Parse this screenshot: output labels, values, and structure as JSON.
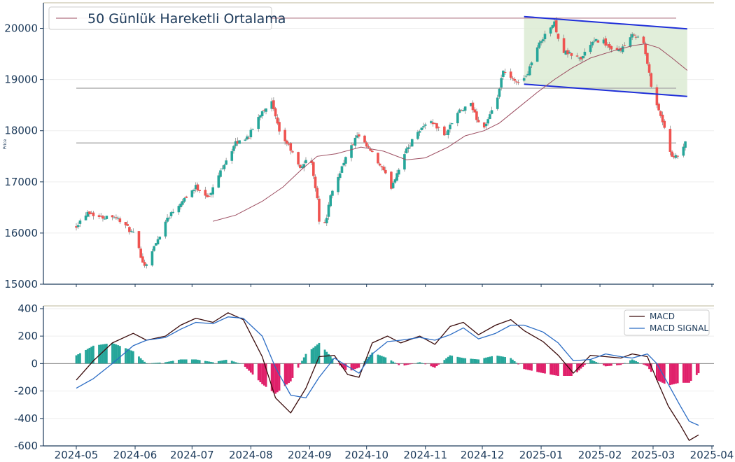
{
  "colors": {
    "up": "#26a69a",
    "down": "#ef5350",
    "ma_line": "#9c4d60",
    "channel": "#1f2fd9",
    "channel_fill": "#dcebd3",
    "sr_line": "#b0b0b0",
    "macd_line": "#3a0b0b",
    "signal_line": "#2b6cc4",
    "hist_pos": "#26a69a",
    "hist_neg": "#e0206a",
    "axis": "#1c3a5a",
    "grid": "#eeeeee"
  },
  "chart_data": [
    {
      "type": "candlestick",
      "ylabel": "Price",
      "ylim": [
        15000,
        20500
      ],
      "yticks": [
        15000,
        16000,
        17000,
        18000,
        19000,
        20000
      ],
      "legend": {
        "placement": "top-left",
        "entries": [
          "50 Günlük Hareketli Ortalama"
        ]
      },
      "ma_label": "50 Günlük Hareketli Ortalama",
      "grid": true,
      "support_resistance": [
        20200,
        18830,
        17760
      ],
      "channel": {
        "start_date": "2024-12-23",
        "end_date": "2025-03-19",
        "upper": [
          20230,
          19990
        ],
        "lower": [
          18910,
          18670
        ]
      },
      "anchors": [
        [
          "2024-05-01",
          16150
        ],
        [
          "2024-05-07",
          16420
        ],
        [
          "2024-05-14",
          16300
        ],
        [
          "2024-05-20",
          16350
        ],
        [
          "2024-05-24",
          16250
        ],
        [
          "2024-05-31",
          15980
        ],
        [
          "2024-06-06",
          15350
        ],
        [
          "2024-06-12",
          15800
        ],
        [
          "2024-06-18",
          16300
        ],
        [
          "2024-06-26",
          16650
        ],
        [
          "2024-07-03",
          16900
        ],
        [
          "2024-07-10",
          16700
        ],
        [
          "2024-07-17",
          17300
        ],
        [
          "2024-07-24",
          17750
        ],
        [
          "2024-07-31",
          17900
        ],
        [
          "2024-08-07",
          18400
        ],
        [
          "2024-08-12",
          18550
        ],
        [
          "2024-08-16",
          17950
        ],
        [
          "2024-08-21",
          17700
        ],
        [
          "2024-08-27",
          17250
        ],
        [
          "2024-09-01",
          17550
        ],
        [
          "2024-09-05",
          16700
        ],
        [
          "2024-09-07",
          15800
        ],
        [
          "2024-09-12",
          16700
        ],
        [
          "2024-09-19",
          17400
        ],
        [
          "2024-09-26",
          17900
        ],
        [
          "2024-10-03",
          17600
        ],
        [
          "2024-10-10",
          17200
        ],
        [
          "2024-10-14",
          16900
        ],
        [
          "2024-10-21",
          17550
        ],
        [
          "2024-10-28",
          18000
        ],
        [
          "2024-11-04",
          18200
        ],
        [
          "2024-11-11",
          17900
        ],
        [
          "2024-11-18",
          18350
        ],
        [
          "2024-11-25",
          18500
        ],
        [
          "2024-12-01",
          18000
        ],
        [
          "2024-12-08",
          18500
        ],
        [
          "2024-12-12",
          19150
        ],
        [
          "2024-12-18",
          18950
        ],
        [
          "2024-12-24",
          19050
        ],
        [
          "2024-12-29",
          19550
        ],
        [
          "2025-01-03",
          19900
        ],
        [
          "2025-01-08",
          20100
        ],
        [
          "2025-01-12",
          19550
        ],
        [
          "2025-01-16",
          19500
        ],
        [
          "2025-01-22",
          19400
        ],
        [
          "2025-01-27",
          19700
        ],
        [
          "2025-02-02",
          19800
        ],
        [
          "2025-02-08",
          19500
        ],
        [
          "2025-02-14",
          19650
        ],
        [
          "2025-02-19",
          19900
        ],
        [
          "2025-02-24",
          19700
        ],
        [
          "2025-02-28",
          18900
        ],
        [
          "2025-03-04",
          18400
        ],
        [
          "2025-03-08",
          17950
        ],
        [
          "2025-03-11",
          17450
        ],
        [
          "2025-03-14",
          17500
        ],
        [
          "2025-03-18",
          17750
        ]
      ],
      "ma50": [
        [
          "2024-07-12",
          16230
        ],
        [
          "2024-07-24",
          16350
        ],
        [
          "2024-08-07",
          16620
        ],
        [
          "2024-08-18",
          16900
        ],
        [
          "2024-08-28",
          17250
        ],
        [
          "2024-09-05",
          17500
        ],
        [
          "2024-09-15",
          17550
        ],
        [
          "2024-09-28",
          17680
        ],
        [
          "2024-10-10",
          17600
        ],
        [
          "2024-10-22",
          17430
        ],
        [
          "2024-11-01",
          17470
        ],
        [
          "2024-11-13",
          17680
        ],
        [
          "2024-11-22",
          17900
        ],
        [
          "2024-12-02",
          18000
        ],
        [
          "2024-12-10",
          18150
        ],
        [
          "2024-12-20",
          18450
        ],
        [
          "2024-12-30",
          18750
        ],
        [
          "2025-01-08",
          19000
        ],
        [
          "2025-01-17",
          19220
        ],
        [
          "2025-01-27",
          19420
        ],
        [
          "2025-02-08",
          19560
        ],
        [
          "2025-02-18",
          19660
        ],
        [
          "2025-02-25",
          19700
        ],
        [
          "2025-03-04",
          19620
        ],
        [
          "2025-03-11",
          19420
        ],
        [
          "2025-03-19",
          19180
        ]
      ]
    },
    {
      "type": "line",
      "ylim": [
        -600,
        420
      ],
      "yticks": [
        -600,
        -400,
        -200,
        0,
        200,
        400
      ],
      "xticks": [
        "2024-05",
        "2024-06",
        "2024-07",
        "2024-08",
        "2024-09",
        "2024-10",
        "2024-11",
        "2024-12",
        "2025-01",
        "2025-02",
        "2025-03",
        "2025-04"
      ],
      "legend": {
        "placement": "top-right",
        "entries": [
          "MACD",
          "MACD SIGNAL"
        ]
      },
      "series": [
        {
          "name": "MACD",
          "values": [
            [
              "2024-05-01",
              -120
            ],
            [
              "2024-05-10",
              20
            ],
            [
              "2024-05-20",
              150
            ],
            [
              "2024-05-31",
              220
            ],
            [
              "2024-06-07",
              170
            ],
            [
              "2024-06-17",
              200
            ],
            [
              "2024-06-25",
              280
            ],
            [
              "2024-07-03",
              330
            ],
            [
              "2024-07-12",
              300
            ],
            [
              "2024-07-20",
              370
            ],
            [
              "2024-07-28",
              320
            ],
            [
              "2024-08-07",
              50
            ],
            [
              "2024-08-14",
              -250
            ],
            [
              "2024-08-22",
              -360
            ],
            [
              "2024-08-30",
              -180
            ],
            [
              "2024-09-06",
              50
            ],
            [
              "2024-09-14",
              60
            ],
            [
              "2024-09-21",
              -80
            ],
            [
              "2024-09-27",
              -100
            ],
            [
              "2024-10-04",
              150
            ],
            [
              "2024-10-12",
              200
            ],
            [
              "2024-10-19",
              150
            ],
            [
              "2024-10-29",
              200
            ],
            [
              "2024-11-06",
              140
            ],
            [
              "2024-11-14",
              270
            ],
            [
              "2024-11-21",
              300
            ],
            [
              "2024-11-29",
              210
            ],
            [
              "2024-12-08",
              280
            ],
            [
              "2024-12-16",
              320
            ],
            [
              "2024-12-23",
              240
            ],
            [
              "2025-01-02",
              160
            ],
            [
              "2025-01-10",
              60
            ],
            [
              "2025-01-18",
              -70
            ],
            [
              "2025-01-27",
              60
            ],
            [
              "2025-02-04",
              50
            ],
            [
              "2025-02-12",
              40
            ],
            [
              "2025-02-18",
              70
            ],
            [
              "2025-02-26",
              50
            ],
            [
              "2025-03-03",
              -120
            ],
            [
              "2025-03-09",
              -310
            ],
            [
              "2025-03-15",
              -440
            ],
            [
              "2025-03-20",
              -560
            ],
            [
              "2025-03-25",
              -520
            ]
          ]
        },
        {
          "name": "MACD SIGNAL",
          "values": [
            [
              "2024-05-01",
              -180
            ],
            [
              "2024-05-10",
              -110
            ],
            [
              "2024-05-20",
              0
            ],
            [
              "2024-05-31",
              130
            ],
            [
              "2024-06-07",
              170
            ],
            [
              "2024-06-17",
              190
            ],
            [
              "2024-06-25",
              250
            ],
            [
              "2024-07-03",
              300
            ],
            [
              "2024-07-12",
              290
            ],
            [
              "2024-07-20",
              340
            ],
            [
              "2024-07-28",
              330
            ],
            [
              "2024-08-07",
              200
            ],
            [
              "2024-08-14",
              -30
            ],
            [
              "2024-08-22",
              -230
            ],
            [
              "2024-08-30",
              -250
            ],
            [
              "2024-09-06",
              -100
            ],
            [
              "2024-09-14",
              40
            ],
            [
              "2024-09-21",
              -20
            ],
            [
              "2024-09-27",
              -70
            ],
            [
              "2024-10-04",
              70
            ],
            [
              "2024-10-12",
              160
            ],
            [
              "2024-10-19",
              170
            ],
            [
              "2024-10-29",
              190
            ],
            [
              "2024-11-06",
              170
            ],
            [
              "2024-11-14",
              210
            ],
            [
              "2024-11-21",
              260
            ],
            [
              "2024-11-29",
              180
            ],
            [
              "2024-12-08",
              220
            ],
            [
              "2024-12-16",
              280
            ],
            [
              "2024-12-23",
              280
            ],
            [
              "2025-01-02",
              230
            ],
            [
              "2025-01-10",
              150
            ],
            [
              "2025-01-18",
              20
            ],
            [
              "2025-01-27",
              30
            ],
            [
              "2025-02-04",
              70
            ],
            [
              "2025-02-12",
              50
            ],
            [
              "2025-02-18",
              40
            ],
            [
              "2025-02-26",
              70
            ],
            [
              "2025-03-03",
              0
            ],
            [
              "2025-03-09",
              -150
            ],
            [
              "2025-03-15",
              -300
            ],
            [
              "2025-03-20",
              -420
            ],
            [
              "2025-03-25",
              -450
            ]
          ]
        }
      ]
    }
  ]
}
